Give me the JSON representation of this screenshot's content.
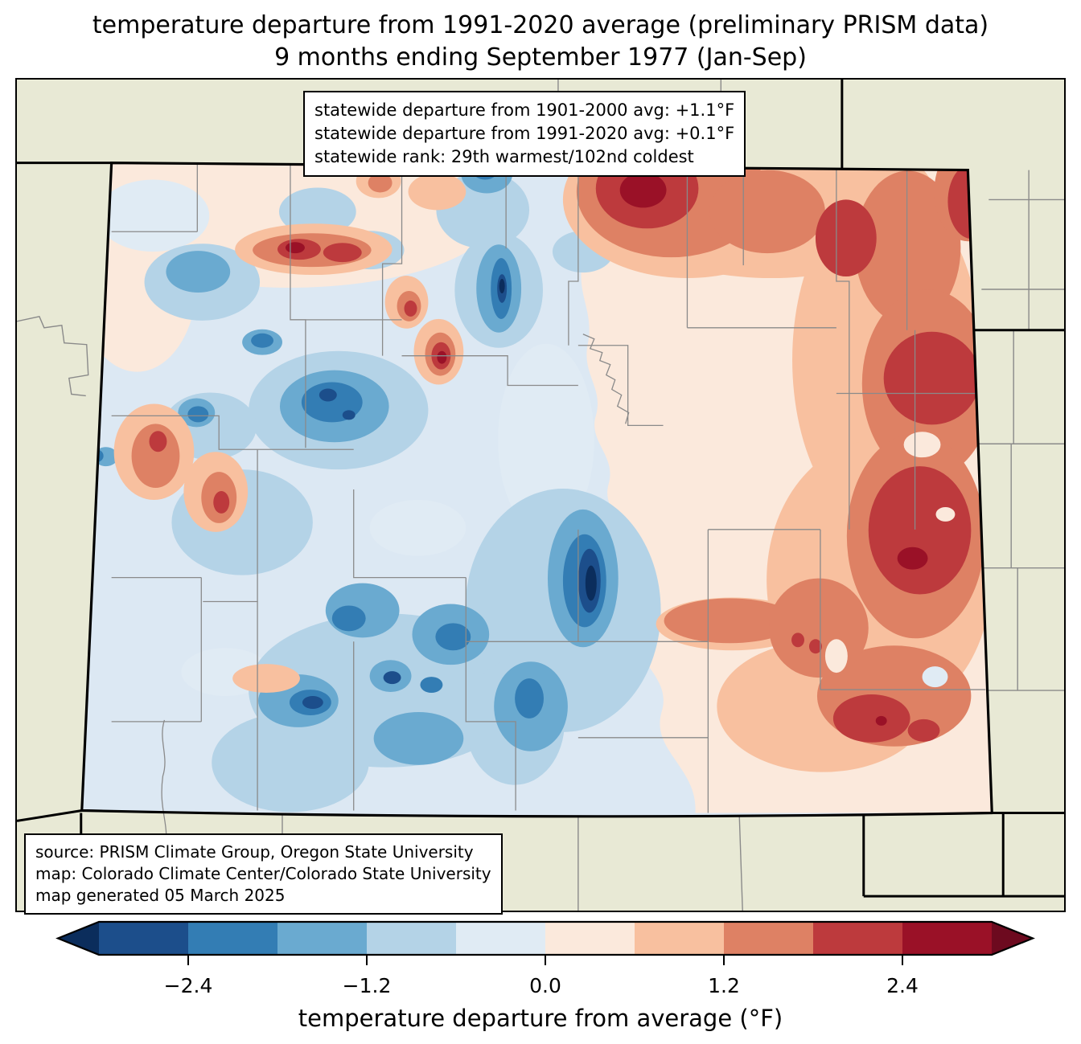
{
  "title": {
    "line1": "temperature departure from 1991-2020 average (preliminary PRISM data)",
    "line2": "9 months ending September 1977 (Jan-Sep)"
  },
  "stats_box": {
    "line1": "statewide departure from 1901-2000 avg: +1.1°F",
    "line2": "statewide departure from 1991-2020 avg: +0.1°F",
    "line3": "statewide rank: 29th warmest/102nd coldest"
  },
  "source_box": {
    "line1": "source: PRISM Climate Group, Oregon State University",
    "line2": "map: Colorado Climate Center/Colorado State University",
    "line3": "map generated 05 March 2025"
  },
  "colorbar": {
    "label": "temperature departure from average (°F)",
    "tick_labels": [
      "−2.4",
      "−1.2",
      "0.0",
      "1.2",
      "2.4"
    ],
    "tick_values": [
      -2.4,
      -1.2,
      0.0,
      1.2,
      2.4
    ],
    "bin_edges": [
      -3.0,
      -2.4,
      -1.8,
      -1.2,
      -0.6,
      0.0,
      0.6,
      1.2,
      1.8,
      2.4,
      3.0
    ],
    "segment_colors": [
      "#1c4e8b",
      "#337db4",
      "#6aaad0",
      "#b4d3e7",
      "#e0ebf4",
      "#fbe9dc",
      "#f8c09f",
      "#de8164",
      "#bd3a3d",
      "#9a1127"
    ],
    "under_color": "#0b2d5c",
    "over_color": "#6d0a1f"
  },
  "map": {
    "region": "Colorado",
    "county_line_color": "#8a8a8a",
    "state_border_color": "#000000",
    "palette": {
      "outside": "#e8e9d5",
      "base": "#dce8f3",
      "under": "#0b2d5c",
      "b1": "#1c4e8b",
      "b2": "#337db4",
      "b3": "#6aaad0",
      "b4": "#b4d3e7",
      "b5": "#e0ebf4",
      "r1": "#fbe9dc",
      "r2": "#f8c09f",
      "r3": "#de8164",
      "r4": "#bd3a3d",
      "r5": "#9a1127",
      "over": "#6d0a1f"
    }
  },
  "chart_data": {
    "type": "heatmap",
    "title": "temperature departure from 1991-2020 average (preliminary PRISM data), 9 months ending September 1977 (Jan-Sep)",
    "units": "°F",
    "scale_range": [
      -3.0,
      3.0
    ],
    "legend_position": "bottom",
    "statewide": {
      "departure_from_1901_2000_avg_F": 1.1,
      "departure_from_1991_2020_avg_F": 0.1,
      "rank": "29th warmest/102nd coldest"
    },
    "pattern_summary": "western and central Colorado mountains below average (to about -3°F); eastern plains above average (to about +3°F), warmest in the northeast and along the eastern border"
  }
}
